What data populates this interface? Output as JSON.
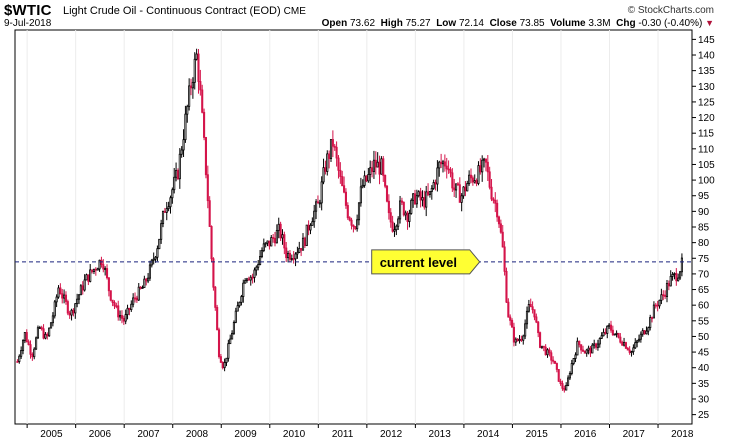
{
  "header": {
    "symbol": "$WTIC",
    "description": "Light Crude Oil - Continuous Contract (EOD)",
    "exchange": "CME",
    "date": "9-Jul-2018",
    "brand": "© StockCharts.com",
    "open_label": "Open",
    "open": "73.62",
    "high_label": "High",
    "high": "75.27",
    "low_label": "Low",
    "low": "72.14",
    "close_label": "Close",
    "close": "73.85",
    "volume_label": "Volume",
    "volume": "3.3M",
    "chg_label": "Chg",
    "chg": "-0.30 (-0.40%)"
  },
  "chart_data": {
    "type": "candlestick",
    "title": "$WTIC Light Crude Oil - Continuous Contract (EOD)",
    "x_range": [
      2004.75,
      2018.7
    ],
    "ylim": [
      22,
      148
    ],
    "y_ticks": [
      25,
      30,
      35,
      40,
      45,
      50,
      55,
      60,
      65,
      70,
      75,
      80,
      85,
      90,
      95,
      100,
      105,
      110,
      115,
      120,
      125,
      130,
      135,
      140,
      145
    ],
    "x_tick_labels": [
      "2005",
      "2006",
      "2007",
      "2008",
      "2009",
      "2010",
      "2011",
      "2012",
      "2013",
      "2014",
      "2015",
      "2016",
      "2017",
      "2018"
    ],
    "reference_line": {
      "value": 73.85,
      "style": "dashed",
      "color": "#1a237e"
    },
    "annotation": {
      "text": "current level",
      "x": 2012.1,
      "y": 73.85,
      "color": "#ffff33"
    },
    "colors": {
      "up": "#ffffff",
      "down": "#d4144a",
      "outline": "#000000"
    },
    "anchors": [
      [
        2004.8,
        42
      ],
      [
        2004.95,
        51
      ],
      [
        2005.1,
        44
      ],
      [
        2005.25,
        53
      ],
      [
        2005.4,
        49
      ],
      [
        2005.55,
        58
      ],
      [
        2005.65,
        66
      ],
      [
        2005.75,
        62
      ],
      [
        2005.9,
        57
      ],
      [
        2006.0,
        61
      ],
      [
        2006.2,
        68
      ],
      [
        2006.35,
        71
      ],
      [
        2006.55,
        75
      ],
      [
        2006.7,
        64
      ],
      [
        2006.85,
        58
      ],
      [
        2007.0,
        55
      ],
      [
        2007.2,
        62
      ],
      [
        2007.4,
        66
      ],
      [
        2007.55,
        72
      ],
      [
        2007.7,
        80
      ],
      [
        2007.85,
        92
      ],
      [
        2007.95,
        95
      ],
      [
        2008.1,
        102
      ],
      [
        2008.25,
        118
      ],
      [
        2008.4,
        133
      ],
      [
        2008.5,
        140
      ],
      [
        2008.58,
        125
      ],
      [
        2008.7,
        100
      ],
      [
        2008.82,
        70
      ],
      [
        2008.95,
        45
      ],
      [
        2009.05,
        40
      ],
      [
        2009.2,
        50
      ],
      [
        2009.35,
        60
      ],
      [
        2009.5,
        70
      ],
      [
        2009.65,
        69
      ],
      [
        2009.85,
        78
      ],
      [
        2010.0,
        80
      ],
      [
        2010.2,
        84
      ],
      [
        2010.35,
        76
      ],
      [
        2010.5,
        77
      ],
      [
        2010.7,
        80
      ],
      [
        2010.85,
        88
      ],
      [
        2011.0,
        92
      ],
      [
        2011.15,
        105
      ],
      [
        2011.3,
        112
      ],
      [
        2011.45,
        100
      ],
      [
        2011.6,
        90
      ],
      [
        2011.75,
        85
      ],
      [
        2011.9,
        98
      ],
      [
        2012.0,
        100
      ],
      [
        2012.15,
        105
      ],
      [
        2012.3,
        104
      ],
      [
        2012.45,
        88
      ],
      [
        2012.55,
        85
      ],
      [
        2012.7,
        92
      ],
      [
        2012.85,
        89
      ],
      [
        2013.0,
        95
      ],
      [
        2013.15,
        93
      ],
      [
        2013.3,
        95
      ],
      [
        2013.5,
        105
      ],
      [
        2013.65,
        106
      ],
      [
        2013.8,
        97
      ],
      [
        2013.95,
        95
      ],
      [
        2014.1,
        100
      ],
      [
        2014.3,
        102
      ],
      [
        2014.45,
        105
      ],
      [
        2014.55,
        97
      ],
      [
        2014.7,
        90
      ],
      [
        2014.8,
        78
      ],
      [
        2014.9,
        58
      ],
      [
        2015.05,
        48
      ],
      [
        2015.2,
        50
      ],
      [
        2015.35,
        60
      ],
      [
        2015.45,
        58
      ],
      [
        2015.55,
        48
      ],
      [
        2015.7,
        45
      ],
      [
        2015.85,
        42
      ],
      [
        2016.0,
        34
      ],
      [
        2016.1,
        33
      ],
      [
        2016.2,
        40
      ],
      [
        2016.35,
        48
      ],
      [
        2016.5,
        45
      ],
      [
        2016.65,
        46
      ],
      [
        2016.85,
        50
      ],
      [
        2017.0,
        53
      ],
      [
        2017.15,
        50
      ],
      [
        2017.3,
        48
      ],
      [
        2017.45,
        45
      ],
      [
        2017.6,
        49
      ],
      [
        2017.8,
        54
      ],
      [
        2017.95,
        60
      ],
      [
        2018.1,
        63
      ],
      [
        2018.25,
        68
      ],
      [
        2018.4,
        70
      ],
      [
        2018.52,
        74
      ]
    ]
  }
}
